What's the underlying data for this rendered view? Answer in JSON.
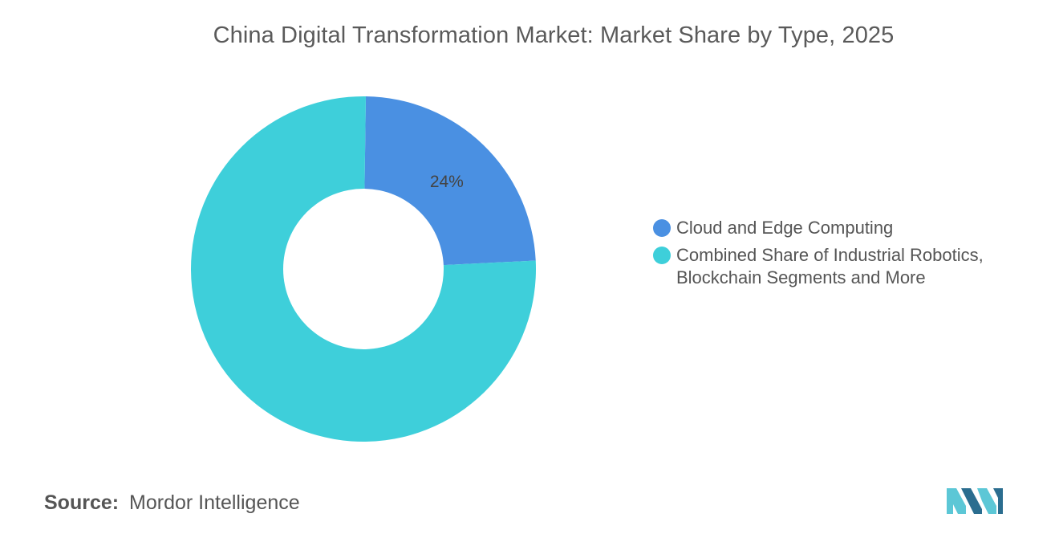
{
  "chart_data": {
    "type": "pie",
    "variant": "donut",
    "title": "China Digital Transformation Market: Market Share by Type, 2025",
    "slices": [
      {
        "label": "Cloud and Edge Computing",
        "value": 24,
        "display": "24%",
        "color": "#4a90e2"
      },
      {
        "label": "Combined Share of Industrial Robotics, Blockchain Segments and More",
        "value": 76,
        "display": "",
        "color": "#3ecfda"
      }
    ],
    "legend": {
      "placement": "right",
      "entries": [
        {
          "line1": "Cloud and Edge Computing",
          "line2": ""
        },
        {
          "line1": "Combined Share of Industrial Robotics,",
          "line2": "Blockchain Segments and More"
        }
      ]
    }
  },
  "source": {
    "label": "Source:",
    "value": "Mordor Intelligence"
  },
  "logo": {
    "icon": "mordor-intelligence-logo-icon",
    "colors": [
      "#5cc7d6",
      "#2b6d8f"
    ]
  }
}
